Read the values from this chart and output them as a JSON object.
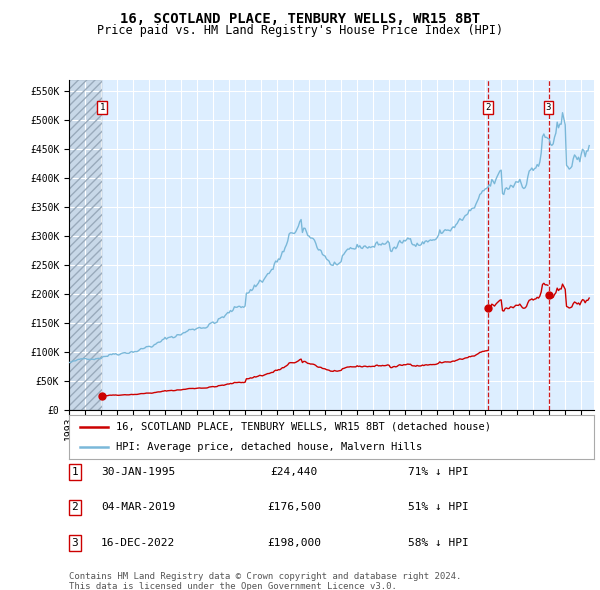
{
  "title": "16, SCOTLAND PLACE, TENBURY WELLS, WR15 8BT",
  "subtitle": "Price paid vs. HM Land Registry's House Price Index (HPI)",
  "ylim": [
    0,
    570000
  ],
  "xlim_start": 1993.0,
  "xlim_end": 2025.8,
  "sale_dates": [
    1995.08,
    2019.17,
    2022.96
  ],
  "sale_prices": [
    24440,
    176500,
    198000
  ],
  "sale_labels": [
    "1",
    "2",
    "3"
  ],
  "sale_date_strs": [
    "30-JAN-1995",
    "04-MAR-2019",
    "16-DEC-2022"
  ],
  "sale_pct_strs": [
    "71%",
    "51%",
    "58%"
  ],
  "legend_sale": "16, SCOTLAND PLACE, TENBURY WELLS, WR15 8BT (detached house)",
  "legend_hpi": "HPI: Average price, detached house, Malvern Hills",
  "footer1": "Contains HM Land Registry data © Crown copyright and database right 2024.",
  "footer2": "This data is licensed under the Open Government Licence v3.0.",
  "hpi_color": "#7ab8d9",
  "sale_color": "#cc0000",
  "plot_bg": "#ddeeff",
  "grid_color": "#ffffff",
  "title_fontsize": 10,
  "subtitle_fontsize": 8.5,
  "tick_fontsize": 7,
  "legend_fontsize": 7.5,
  "table_fontsize": 8,
  "footer_fontsize": 6.5
}
